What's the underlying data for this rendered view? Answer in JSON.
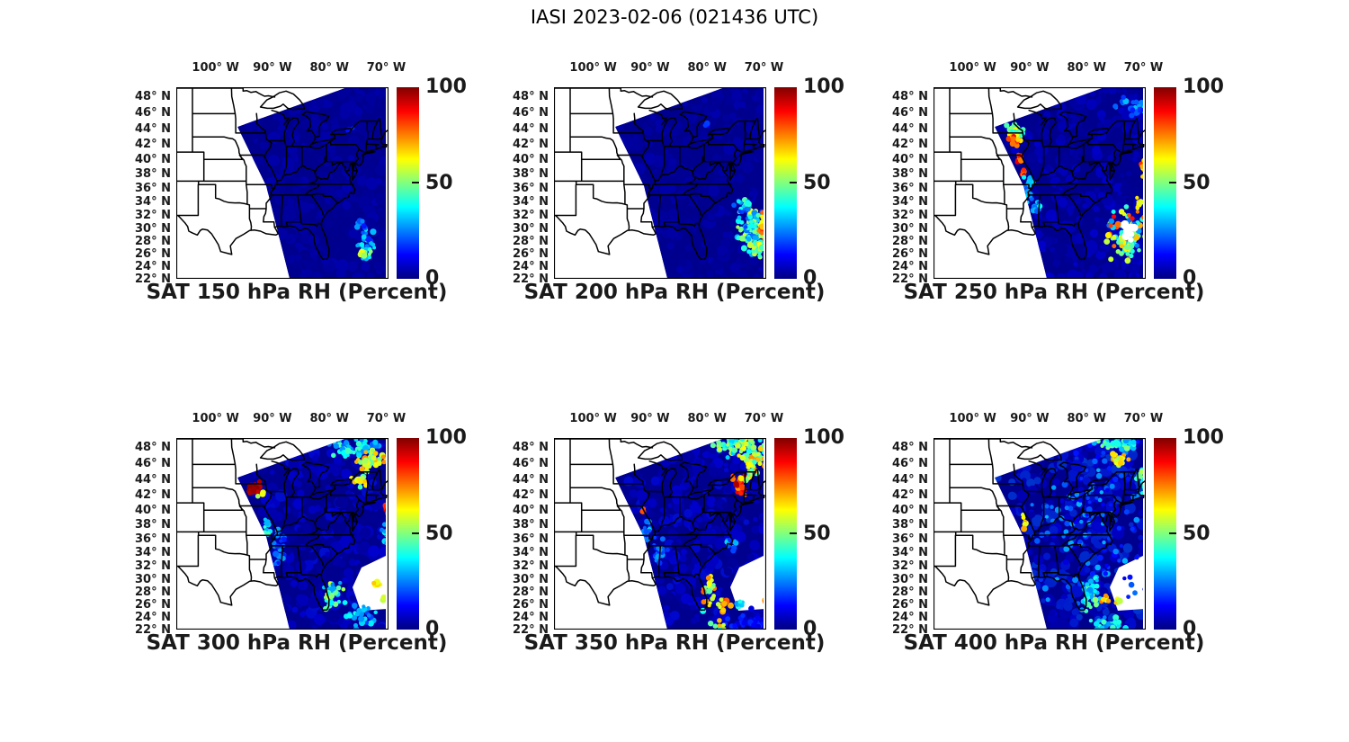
{
  "figure_title": "IASI 2023-02-06 (021436 UTC)",
  "colors": {
    "background": "#ffffff",
    "text": "#1a1a1a",
    "map_border": "#000000",
    "state_lines": "#000000",
    "no_data": "#ffffff",
    "jet_stops": [
      "#000080",
      "#0000ff",
      "#00ffff",
      "#ffff00",
      "#ff0000",
      "#800000"
    ]
  },
  "chart_data": {
    "type": "map-scatter-grid",
    "title": "IASI 2023-02-06 (021436 UTC)",
    "variable": "RH (Percent)",
    "colormap": "jet",
    "grid": {
      "rows": 2,
      "cols": 3
    },
    "colorbar": {
      "min": 0,
      "max": 100,
      "tick_labels": [
        "100",
        "50",
        "0"
      ],
      "tick_values": [
        100,
        50,
        0
      ]
    },
    "axes": {
      "projection": "mercator",
      "lon_range": [
        -106.9,
        -69.6
      ],
      "lat_range": [
        22,
        49.1
      ],
      "lon_tick_labels": [
        "100° W",
        "90° W",
        "80° W",
        "70° W"
      ],
      "lon_tick_values": [
        -100,
        -90,
        -80,
        -70
      ],
      "lat_tick_labels": [
        "48° N",
        "46° N",
        "44° N",
        "42° N",
        "40° N",
        "38° N",
        "36° N",
        "34° N",
        "32° N",
        "30° N",
        "28° N",
        "26° N",
        "24° N",
        "22° N"
      ],
      "lat_tick_values": [
        48,
        46,
        44,
        42,
        40,
        38,
        36,
        34,
        32,
        30,
        28,
        26,
        24,
        22
      ]
    },
    "panels": [
      {
        "title": "SAT 150 hPa RH (Percent)",
        "level_hPa": 150,
        "row": 0,
        "col": 0,
        "seed": 151,
        "notch": false,
        "texture": {
          "n": 330,
          "rh_min": 1,
          "rh_max": 7
        },
        "features": [
          {
            "lon": -73.4,
            "lat": 27.4,
            "rlon": 1.3,
            "rlat": 1.9,
            "n": 26,
            "rh": 28,
            "spread": 13
          },
          {
            "lon": -73.7,
            "lat": 25.9,
            "rlon": 0.9,
            "rlat": 0.7,
            "n": 12,
            "rh": 48,
            "spread": 18
          },
          {
            "lon": -74.6,
            "lat": 30.6,
            "rlon": 0.9,
            "rlat": 0.8,
            "n": 8,
            "rh": 20,
            "spread": 8
          },
          {
            "lon": -76.3,
            "lat": 43.9,
            "rlon": 0.5,
            "rlat": 0.35,
            "n": 4,
            "rh": 16,
            "spread": 5
          }
        ]
      },
      {
        "title": "SAT 200 hPa RH (Percent)",
        "level_hPa": 200,
        "row": 0,
        "col": 1,
        "seed": 202,
        "notch": false,
        "texture": {
          "n": 330,
          "rh_min": 1,
          "rh_max": 7
        },
        "features": [
          {
            "lon": -71.8,
            "lat": 30.2,
            "rlon": 2.4,
            "rlat": 3.0,
            "n": 120,
            "rh": 40,
            "spread": 22
          },
          {
            "lon": -70.2,
            "lat": 30.6,
            "rlon": 0.8,
            "rlat": 1.8,
            "n": 24,
            "rh": 68,
            "spread": 16
          },
          {
            "lon": -71.2,
            "lat": 26.6,
            "rlon": 1.3,
            "rlat": 0.9,
            "n": 18,
            "rh": 58,
            "spread": 20
          },
          {
            "lon": -73.6,
            "lat": 33.4,
            "rlon": 1.2,
            "rlat": 1.1,
            "n": 14,
            "rh": 30,
            "spread": 12
          },
          {
            "lon": -80.0,
            "lat": 44.6,
            "rlon": 0.5,
            "rlat": 0.35,
            "n": 4,
            "rh": 15,
            "spread": 5
          }
        ]
      },
      {
        "title": "SAT 250 hPa RH (Percent)",
        "level_hPa": 250,
        "row": 0,
        "col": 2,
        "seed": 253,
        "notch": false,
        "texture": {
          "n": 330,
          "rh_min": 1,
          "rh_max": 12
        },
        "features": [
          {
            "lon": -92.6,
            "lat": 43.7,
            "rlon": 1.4,
            "rlat": 1.0,
            "n": 36,
            "rh": 52,
            "spread": 16
          },
          {
            "lon": -93.0,
            "lat": 42.5,
            "rlon": 0.9,
            "rlat": 0.6,
            "n": 12,
            "rh": 78,
            "spread": 12
          },
          {
            "lon": -91.9,
            "lat": 40.0,
            "rlon": 0.5,
            "rlat": 0.7,
            "n": 8,
            "rh": 85,
            "spread": 10
          },
          {
            "lon": -91.2,
            "lat": 38.3,
            "rlon": 0.5,
            "rlat": 0.6,
            "n": 6,
            "rh": 80,
            "spread": 12
          },
          {
            "lon": -90.2,
            "lat": 36.0,
            "rlon": 0.9,
            "rlat": 1.6,
            "n": 22,
            "rh": 30,
            "spread": 10
          },
          {
            "lon": -88.8,
            "lat": 33.6,
            "rlon": 0.9,
            "rlat": 1.3,
            "n": 16,
            "rh": 28,
            "spread": 10
          },
          {
            "lon": -73.0,
            "lat": 28.9,
            "rlon": 3.2,
            "rlat": 3.3,
            "n": 95,
            "rh": 55,
            "spread": 33
          },
          {
            "lon": -72.6,
            "lat": 29.6,
            "rlon": 1.0,
            "rlat": 1.0,
            "n": 12,
            "rh": -1,
            "spread": 0
          },
          {
            "lon": -70.1,
            "lat": 38.6,
            "rlon": 0.5,
            "rlat": 1.2,
            "n": 10,
            "rh": 70,
            "spread": 15
          },
          {
            "lon": -72.3,
            "lat": 46.6,
            "rlon": 2.4,
            "rlat": 1.4,
            "n": 24,
            "rh": 24,
            "spread": 10
          },
          {
            "lon": -70.6,
            "lat": 33.9,
            "rlon": 0.8,
            "rlat": 0.8,
            "n": 8,
            "rh": 62,
            "spread": 18
          }
        ]
      },
      {
        "title": "SAT 300 hPa RH (Percent)",
        "level_hPa": 300,
        "row": 1,
        "col": 0,
        "seed": 304,
        "notch": true,
        "texture": {
          "n": 330,
          "rh_min": 2,
          "rh_max": 15
        },
        "features": [
          {
            "lon": -93.2,
            "lat": 43.0,
            "rlon": 1.0,
            "rlat": 0.85,
            "n": 30,
            "rh": 96,
            "spread": 5
          },
          {
            "lon": -91.9,
            "lat": 42.2,
            "rlon": 0.5,
            "rlat": 0.35,
            "n": 5,
            "rh": 58,
            "spread": 10
          },
          {
            "lon": -74.5,
            "lat": 47.9,
            "rlon": 4.3,
            "rlat": 1.2,
            "n": 55,
            "rh": 34,
            "spread": 12
          },
          {
            "lon": -72.4,
            "lat": 46.4,
            "rlon": 2.2,
            "rlat": 1.2,
            "n": 38,
            "rh": 60,
            "spread": 14
          },
          {
            "lon": -74.9,
            "lat": 44.1,
            "rlon": 1.2,
            "rlat": 1.1,
            "n": 16,
            "rh": 55,
            "spread": 16
          },
          {
            "lon": -69.9,
            "lat": 40.3,
            "rlon": 0.4,
            "rlat": 0.7,
            "n": 7,
            "rh": 90,
            "spread": 7
          },
          {
            "lon": -70.3,
            "lat": 36.6,
            "rlon": 0.6,
            "rlat": 1.4,
            "n": 11,
            "rh": 34,
            "spread": 10
          },
          {
            "lon": -79.6,
            "lat": 27.6,
            "rlon": 1.5,
            "rlat": 2.4,
            "n": 30,
            "rh": 44,
            "spread": 22
          },
          {
            "lon": -74.2,
            "lat": 24.2,
            "rlon": 2.8,
            "rlat": 1.4,
            "n": 28,
            "rh": 30,
            "spread": 12
          },
          {
            "lon": -71.6,
            "lat": 29.4,
            "rlon": 0.7,
            "rlat": 0.5,
            "n": 6,
            "rh": 68,
            "spread": 10
          },
          {
            "lon": -70.1,
            "lat": 26.9,
            "rlon": 0.6,
            "rlat": 0.5,
            "n": 5,
            "rh": 66,
            "spread": 10
          },
          {
            "lon": -88.6,
            "lat": 34.6,
            "rlon": 1.4,
            "rlat": 2.4,
            "n": 24,
            "rh": 22,
            "spread": 8
          },
          {
            "lon": -90.8,
            "lat": 37.9,
            "rlon": 0.6,
            "rlat": 1.2,
            "n": 10,
            "rh": 34,
            "spread": 10
          }
        ]
      },
      {
        "title": "SAT 350 hPa RH (Percent)",
        "level_hPa": 350,
        "row": 1,
        "col": 1,
        "seed": 355,
        "notch": true,
        "texture": {
          "n": 330,
          "rh_min": 2,
          "rh_max": 15
        },
        "features": [
          {
            "lon": -74.6,
            "lat": 48.1,
            "rlon": 4.4,
            "rlat": 1.1,
            "n": 65,
            "rh": 48,
            "spread": 16
          },
          {
            "lon": -71.6,
            "lat": 46.4,
            "rlon": 2.0,
            "rlat": 1.4,
            "n": 38,
            "rh": 58,
            "spread": 18
          },
          {
            "lon": -74.4,
            "lat": 43.4,
            "rlon": 1.0,
            "rlat": 1.2,
            "n": 22,
            "rh": 84,
            "spread": 12
          },
          {
            "lon": -73.1,
            "lat": 44.4,
            "rlon": 1.0,
            "rlat": 0.8,
            "n": 12,
            "rh": 58,
            "spread": 14
          },
          {
            "lon": -91.3,
            "lat": 39.9,
            "rlon": 0.35,
            "rlat": 0.4,
            "n": 4,
            "rh": 86,
            "spread": 8
          },
          {
            "lon": -90.6,
            "lat": 37.6,
            "rlon": 0.7,
            "rlat": 1.5,
            "n": 14,
            "rh": 28,
            "spread": 9
          },
          {
            "lon": -88.3,
            "lat": 34.2,
            "rlon": 1.3,
            "rlat": 2.2,
            "n": 20,
            "rh": 22,
            "spread": 8
          },
          {
            "lon": -75.6,
            "lat": 35.6,
            "rlon": 1.0,
            "rlat": 1.0,
            "n": 10,
            "rh": 26,
            "spread": 9
          },
          {
            "lon": -79.8,
            "lat": 27.9,
            "rlon": 1.2,
            "rlat": 2.1,
            "n": 24,
            "rh": 58,
            "spread": 22
          },
          {
            "lon": -76.9,
            "lat": 25.9,
            "rlon": 1.2,
            "rlat": 0.8,
            "n": 10,
            "rh": 68,
            "spread": 14
          },
          {
            "lon": -74.3,
            "lat": 26.3,
            "rlon": 0.8,
            "rlat": 0.6,
            "n": 6,
            "rh": 34,
            "spread": 8
          },
          {
            "lon": -69.9,
            "lat": 26.6,
            "rlon": 0.4,
            "rlat": 0.5,
            "n": 4,
            "rh": 78,
            "spread": 10
          },
          {
            "lon": -73.2,
            "lat": 23.6,
            "rlon": 3.4,
            "rlat": 1.2,
            "n": 36,
            "rh": 12,
            "spread": 6
          },
          {
            "lon": -77.6,
            "lat": 22.6,
            "rlon": 1.5,
            "rlat": 0.6,
            "n": 8,
            "rh": 52,
            "spread": 18
          }
        ]
      },
      {
        "title": "SAT 400 hPa RH (Percent)",
        "level_hPa": 400,
        "row": 1,
        "col": 2,
        "seed": 406,
        "notch": true,
        "texture": {
          "n": 330,
          "rh_min": 5,
          "rh_max": 22
        },
        "features": [
          {
            "lon": -79.0,
            "lat": 38.0,
            "rlon": 8.5,
            "rlat": 11.0,
            "n": 140,
            "rh": 20,
            "spread": 11
          },
          {
            "lon": -74.6,
            "lat": 48.3,
            "rlon": 3.8,
            "rlat": 0.9,
            "n": 40,
            "rh": 38,
            "spread": 12
          },
          {
            "lon": -74.4,
            "lat": 46.7,
            "rlon": 1.8,
            "rlat": 0.8,
            "n": 24,
            "rh": 63,
            "spread": 12
          },
          {
            "lon": -70.4,
            "lat": 43.6,
            "rlon": 0.7,
            "rlat": 1.9,
            "n": 14,
            "rh": 44,
            "spread": 12
          },
          {
            "lon": -90.7,
            "lat": 38.3,
            "rlon": 0.5,
            "rlat": 0.8,
            "n": 8,
            "rh": 66,
            "spread": 10
          },
          {
            "lon": -79.4,
            "lat": 27.6,
            "rlon": 1.5,
            "rlat": 2.4,
            "n": 34,
            "rh": 40,
            "spread": 14
          },
          {
            "lon": -76.7,
            "lat": 26.7,
            "rlon": 0.8,
            "rlat": 0.6,
            "n": 6,
            "rh": 68,
            "spread": 10
          },
          {
            "lon": -74.4,
            "lat": 26.4,
            "rlon": 0.7,
            "rlat": 0.5,
            "n": 5,
            "rh": 63,
            "spread": 10
          },
          {
            "lon": -76.2,
            "lat": 22.9,
            "rlon": 3.4,
            "rlat": 0.9,
            "n": 28,
            "rh": 34,
            "spread": 10
          }
        ]
      }
    ]
  }
}
